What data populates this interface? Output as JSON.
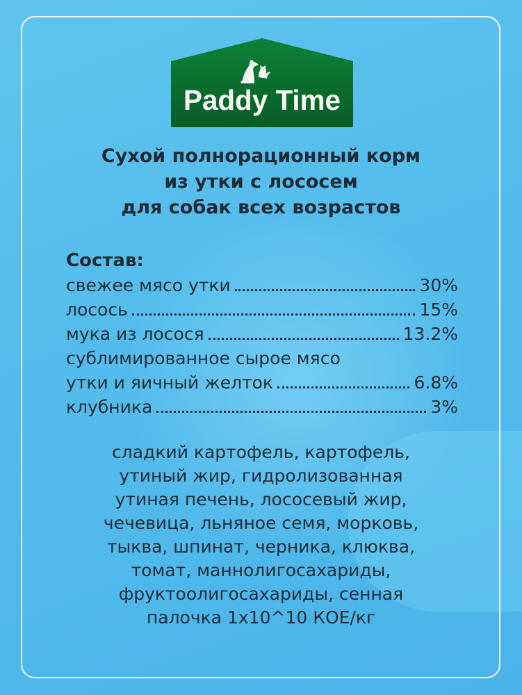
{
  "brand": {
    "name": "Paddy Time",
    "colors": {
      "logo_green": "#0b7a34",
      "background": "#55bdec"
    }
  },
  "title_lines": [
    "Сухой полнорационный корм",
    "из утки с лососем",
    "для собак всех возрастов"
  ],
  "composition": {
    "heading": "Состав:",
    "items": [
      {
        "name": "свежее мясо утки",
        "value": "30%"
      },
      {
        "name": "лосось",
        "value": "15%"
      },
      {
        "name": "мука из лосося",
        "value": "13.2%"
      },
      {
        "name_line1": "сублимированное сырое мясо",
        "name": "утки и яичный желток",
        "value": "6.8%"
      },
      {
        "name": "клубника",
        "value": "3%"
      }
    ]
  },
  "other_ingredients_lines": [
    "сладкий картофель, картофель,",
    "утиный жир, гидролизованная",
    "утиная печень, лососевый жир,",
    "чечевица, льняное семя, морковь,",
    "тыква, шпинат, черника, клюква,",
    "томат, маннолигосахариды,",
    "фруктоолигосахариды, сенная",
    "палочка 1x10^10 КОЕ/кг"
  ]
}
